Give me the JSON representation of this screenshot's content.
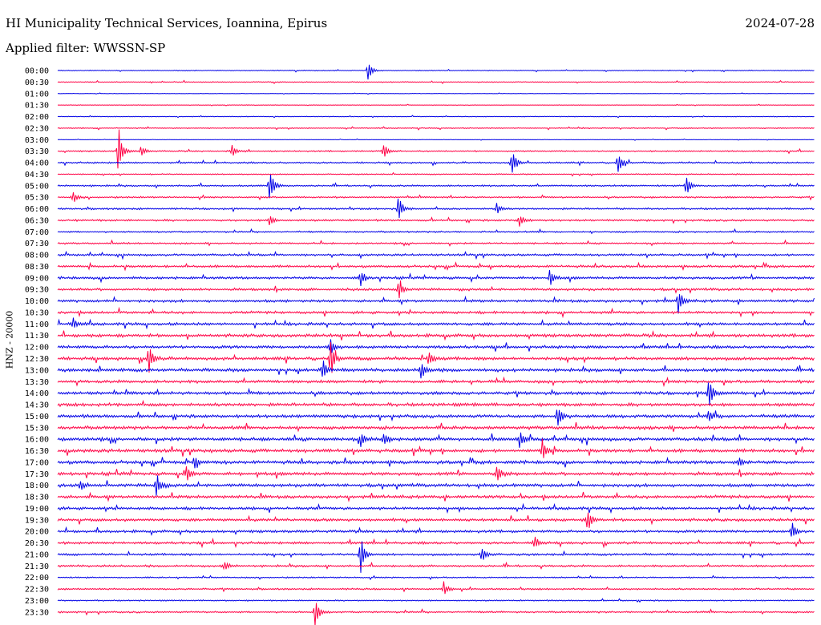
{
  "header": {
    "station": "HI Municipality Technical Services, Ioannina, Epirus",
    "date": "2024-07-28",
    "filter": "Applied filter: WWSSN-SP"
  },
  "chart_data": {
    "type": "line",
    "ylabel": "HNZ - 20000",
    "row_labels": [
      "00:00",
      "00:30",
      "01:00",
      "01:30",
      "02:00",
      "02:30",
      "03:00",
      "03:30",
      "04:00",
      "04:30",
      "05:00",
      "05:30",
      "06:00",
      "06:30",
      "07:00",
      "07:30",
      "08:00",
      "08:30",
      "09:00",
      "09:30",
      "10:00",
      "10:30",
      "11:00",
      "11:30",
      "12:00",
      "12:30",
      "13:00",
      "13:30",
      "14:00",
      "14:30",
      "15:00",
      "15:30",
      "16:00",
      "16:30",
      "17:00",
      "17:30",
      "18:00",
      "18:30",
      "19:00",
      "19:30",
      "20:00",
      "20:30",
      "21:00",
      "21:30",
      "22:00",
      "22:30",
      "23:00",
      "23:30"
    ],
    "colors": {
      "even": "#0000e6",
      "odd": "#ff0044"
    },
    "row_noise": [
      0.6,
      0.7,
      0.3,
      0.4,
      0.5,
      0.7,
      0.3,
      1.0,
      1.2,
      0.8,
      1.2,
      1.2,
      1.3,
      1.4,
      1.2,
      1.2,
      1.5,
      1.7,
      1.8,
      1.8,
      1.9,
      1.9,
      2.0,
      2.2,
      2.1,
      2.3,
      2.3,
      2.1,
      2.2,
      2.3,
      2.3,
      2.3,
      2.4,
      2.4,
      2.4,
      2.3,
      2.3,
      2.2,
      2.0,
      2.0,
      1.9,
      1.8,
      1.6,
      1.5,
      1.0,
      1.2,
      0.9,
      1.3
    ],
    "events": [
      {
        "row": 0,
        "frac": 0.41,
        "amp": 14
      },
      {
        "row": 7,
        "frac": 0.08,
        "amp": 35
      },
      {
        "row": 7,
        "frac": 0.11,
        "amp": 8
      },
      {
        "row": 7,
        "frac": 0.23,
        "amp": 9
      },
      {
        "row": 7,
        "frac": 0.43,
        "amp": 12
      },
      {
        "row": 8,
        "frac": 0.6,
        "amp": 20
      },
      {
        "row": 8,
        "frac": 0.74,
        "amp": 16
      },
      {
        "row": 10,
        "frac": 0.28,
        "amp": 28
      },
      {
        "row": 10,
        "frac": 0.83,
        "amp": 16
      },
      {
        "row": 11,
        "frac": 0.02,
        "amp": 8
      },
      {
        "row": 12,
        "frac": 0.45,
        "amp": 18
      },
      {
        "row": 12,
        "frac": 0.58,
        "amp": 7
      },
      {
        "row": 13,
        "frac": 0.61,
        "amp": 10
      },
      {
        "row": 13,
        "frac": 0.28,
        "amp": 8
      },
      {
        "row": 18,
        "frac": 0.4,
        "amp": 12
      },
      {
        "row": 18,
        "frac": 0.65,
        "amp": 12
      },
      {
        "row": 19,
        "frac": 0.45,
        "amp": 14
      },
      {
        "row": 20,
        "frac": 0.82,
        "amp": 18
      },
      {
        "row": 22,
        "frac": 0.02,
        "amp": 9
      },
      {
        "row": 24,
        "frac": 0.36,
        "amp": 12
      },
      {
        "row": 25,
        "frac": 0.12,
        "amp": 20
      },
      {
        "row": 25,
        "frac": 0.36,
        "amp": 24
      },
      {
        "row": 25,
        "frac": 0.49,
        "amp": 10
      },
      {
        "row": 26,
        "frac": 0.35,
        "amp": 14
      },
      {
        "row": 26,
        "frac": 0.48,
        "amp": 14
      },
      {
        "row": 28,
        "frac": 0.86,
        "amp": 24
      },
      {
        "row": 30,
        "frac": 0.66,
        "amp": 18
      },
      {
        "row": 30,
        "frac": 0.86,
        "amp": 10
      },
      {
        "row": 32,
        "frac": 0.4,
        "amp": 9
      },
      {
        "row": 32,
        "frac": 0.43,
        "amp": 10
      },
      {
        "row": 32,
        "frac": 0.61,
        "amp": 12
      },
      {
        "row": 33,
        "frac": 0.64,
        "amp": 16
      },
      {
        "row": 34,
        "frac": 0.18,
        "amp": 8
      },
      {
        "row": 34,
        "frac": 0.9,
        "amp": 7
      },
      {
        "row": 35,
        "frac": 0.17,
        "amp": 10
      },
      {
        "row": 35,
        "frac": 0.58,
        "amp": 12
      },
      {
        "row": 36,
        "frac": 0.13,
        "amp": 18
      },
      {
        "row": 36,
        "frac": 0.03,
        "amp": 7
      },
      {
        "row": 39,
        "frac": 0.7,
        "amp": 16
      },
      {
        "row": 40,
        "frac": 0.97,
        "amp": 12
      },
      {
        "row": 41,
        "frac": 0.63,
        "amp": 10
      },
      {
        "row": 42,
        "frac": 0.4,
        "amp": 28
      },
      {
        "row": 42,
        "frac": 0.56,
        "amp": 12
      },
      {
        "row": 43,
        "frac": 0.22,
        "amp": 8
      },
      {
        "row": 45,
        "frac": 0.51,
        "amp": 9
      },
      {
        "row": 47,
        "frac": 0.34,
        "amp": 20
      }
    ]
  }
}
